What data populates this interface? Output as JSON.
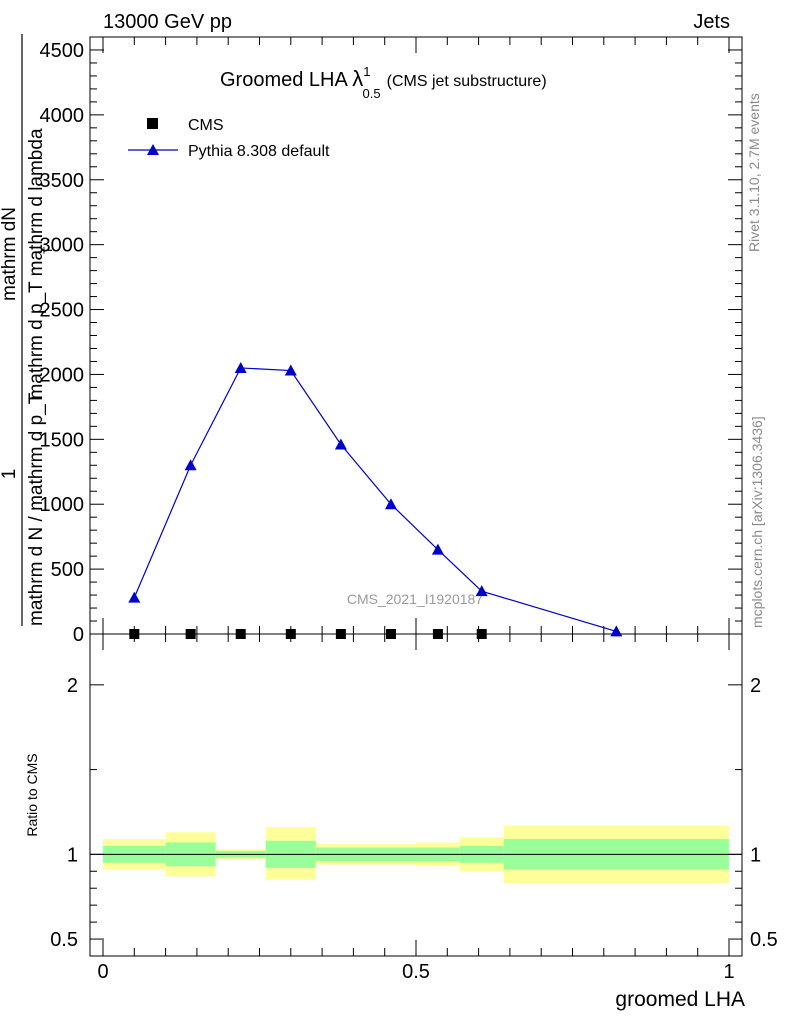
{
  "header": {
    "energy": "13000 GeV pp",
    "category": "Jets"
  },
  "side_labels": {
    "rivet": "Rivet 3.1.10,  2.7M events",
    "mcplots": "mcplots.cern.ch [arXiv:1306.3436]"
  },
  "chart_data": {
    "type": "line",
    "title_main": "Groomed LHA",
    "title_symbol": "λ",
    "title_sup": "1",
    "title_sub": "0.5",
    "title_note": "(CMS jet substructure)",
    "analysis_id": "CMS_2021_I1920187",
    "ylabel_numerator": "mathrm dN",
    "ylabel_denominator": "mathrm d p_T mathrm d lambda",
    "ylabel_sub": "T",
    "ylabel_prefix_num": "1",
    "ylabel_prefix_den": "mathrm d N / mathrm d p_T",
    "xlabel": "groomed LHA",
    "xlim": [
      0,
      1
    ],
    "ylim": [
      0,
      4600
    ],
    "y_ticks": [
      "0",
      "500",
      "1000",
      "1500",
      "2000",
      "2500",
      "3000",
      "3500",
      "4000",
      "4500"
    ],
    "x_ticks": [
      "0",
      "0.5",
      "1"
    ],
    "legend": [
      {
        "label": "CMS",
        "marker": "square",
        "color": "#000000"
      },
      {
        "label": "Pythia 8.308 default",
        "marker": "triangle",
        "color": "#0000cc"
      }
    ],
    "series": [
      {
        "name": "CMS",
        "x": [
          0.05,
          0.14,
          0.22,
          0.3,
          0.38,
          0.46,
          0.535,
          0.605
        ],
        "y": [
          0,
          0,
          0,
          0,
          0,
          0,
          0,
          0
        ]
      },
      {
        "name": "Pythia 8.308 default",
        "x": [
          0.05,
          0.14,
          0.22,
          0.3,
          0.38,
          0.46,
          0.535,
          0.605,
          0.82
        ],
        "y": [
          280,
          1300,
          2050,
          2030,
          1460,
          1000,
          650,
          330,
          20
        ]
      }
    ],
    "ratio": {
      "ylabel": "Ratio to CMS",
      "ylim": [
        0.4,
        2.3
      ],
      "y_ticks": [
        "0.5",
        "1",
        "2"
      ],
      "bands": [
        {
          "x0": 0.0,
          "x1": 0.1,
          "inner": [
            0.95,
            1.05
          ],
          "outer": [
            0.91,
            1.09
          ]
        },
        {
          "x0": 0.1,
          "x1": 0.18,
          "inner": [
            0.93,
            1.07
          ],
          "outer": [
            0.87,
            1.13
          ]
        },
        {
          "x0": 0.18,
          "x1": 0.26,
          "inner": [
            0.98,
            1.02
          ],
          "outer": [
            0.97,
            1.03
          ]
        },
        {
          "x0": 0.26,
          "x1": 0.34,
          "inner": [
            0.92,
            1.08
          ],
          "outer": [
            0.85,
            1.16
          ]
        },
        {
          "x0": 0.34,
          "x1": 0.5,
          "inner": [
            0.96,
            1.04
          ],
          "outer": [
            0.94,
            1.06
          ]
        },
        {
          "x0": 0.5,
          "x1": 0.57,
          "inner": [
            0.96,
            1.04
          ],
          "outer": [
            0.93,
            1.07
          ]
        },
        {
          "x0": 0.57,
          "x1": 0.64,
          "inner": [
            0.95,
            1.05
          ],
          "outer": [
            0.9,
            1.1
          ]
        },
        {
          "x0": 0.64,
          "x1": 1.0,
          "inner": [
            0.91,
            1.09
          ],
          "outer": [
            0.83,
            1.17
          ]
        }
      ]
    },
    "colors": {
      "mc": "#0000cc",
      "data": "#000000",
      "band_inner": "#99ff99",
      "band_outer": "#ffff99"
    }
  }
}
